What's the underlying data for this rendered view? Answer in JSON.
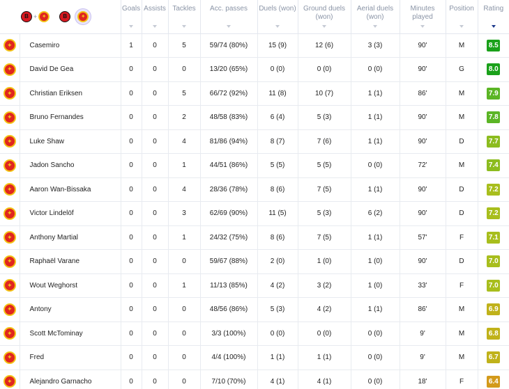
{
  "header": {
    "columns": [
      {
        "key": "goals",
        "label": "Goals"
      },
      {
        "key": "assists",
        "label": "Assists"
      },
      {
        "key": "tackles",
        "label": "Tackles"
      },
      {
        "key": "acc_passes",
        "label": "Acc. passes"
      },
      {
        "key": "duels",
        "label": "Duels (won)"
      },
      {
        "key": "ground_duels",
        "label": "Ground duels (won)"
      },
      {
        "key": "aerial_duels",
        "label": "Aerial duels (won)"
      },
      {
        "key": "minutes",
        "label": "Minutes played"
      },
      {
        "key": "position",
        "label": "Position"
      },
      {
        "key": "rating",
        "label": "Rating"
      }
    ],
    "team_filter": {
      "plus": "+",
      "options": [
        "both-teams",
        "bournemouth",
        "manchester-united"
      ],
      "selected": "manchester-united"
    }
  },
  "colors": {
    "rating_dark_green": "#1aa11a",
    "rating_green": "#5bb525",
    "rating_lime": "#8cbc1f",
    "rating_yellow_green": "#a8be1d",
    "rating_olive": "#c0b21a",
    "rating_orange": "#d39a1b",
    "man_utd_red": "#e0261f",
    "man_utd_gold": "#f3c316"
  },
  "players": [
    {
      "name": "Casemiro",
      "goals": "1",
      "assists": "0",
      "tackles": "5",
      "acc_passes": "59/74 (80%)",
      "duels": "15 (9)",
      "ground_duels": "12 (6)",
      "aerial_duels": "3 (3)",
      "minutes": "90'",
      "position": "M",
      "rating": "8.5",
      "rating_color": "#1aa11a"
    },
    {
      "name": "David De Gea",
      "goals": "0",
      "assists": "0",
      "tackles": "0",
      "acc_passes": "13/20 (65%)",
      "duels": "0 (0)",
      "ground_duels": "0 (0)",
      "aerial_duels": "0 (0)",
      "minutes": "90'",
      "position": "G",
      "rating": "8.0",
      "rating_color": "#1aa11a"
    },
    {
      "name": "Christian Eriksen",
      "goals": "0",
      "assists": "0",
      "tackles": "5",
      "acc_passes": "66/72 (92%)",
      "duels": "11 (8)",
      "ground_duels": "10 (7)",
      "aerial_duels": "1 (1)",
      "minutes": "86'",
      "position": "M",
      "rating": "7.9",
      "rating_color": "#5bb525"
    },
    {
      "name": "Bruno Fernandes",
      "goals": "0",
      "assists": "0",
      "tackles": "2",
      "acc_passes": "48/58 (83%)",
      "duels": "6 (4)",
      "ground_duels": "5 (3)",
      "aerial_duels": "1 (1)",
      "minutes": "90'",
      "position": "M",
      "rating": "7.8",
      "rating_color": "#5bb525"
    },
    {
      "name": "Luke Shaw",
      "goals": "0",
      "assists": "0",
      "tackles": "4",
      "acc_passes": "81/86 (94%)",
      "duels": "8 (7)",
      "ground_duels": "7 (6)",
      "aerial_duels": "1 (1)",
      "minutes": "90'",
      "position": "D",
      "rating": "7.7",
      "rating_color": "#8cbc1f"
    },
    {
      "name": "Jadon Sancho",
      "goals": "0",
      "assists": "0",
      "tackles": "1",
      "acc_passes": "44/51 (86%)",
      "duels": "5 (5)",
      "ground_duels": "5 (5)",
      "aerial_duels": "0 (0)",
      "minutes": "72'",
      "position": "M",
      "rating": "7.4",
      "rating_color": "#8cbc1f"
    },
    {
      "name": "Aaron Wan-Bissaka",
      "goals": "0",
      "assists": "0",
      "tackles": "4",
      "acc_passes": "28/36 (78%)",
      "duels": "8 (6)",
      "ground_duels": "7 (5)",
      "aerial_duels": "1 (1)",
      "minutes": "90'",
      "position": "D",
      "rating": "7.2",
      "rating_color": "#a8be1d"
    },
    {
      "name": "Victor Lindelöf",
      "goals": "0",
      "assists": "0",
      "tackles": "3",
      "acc_passes": "62/69 (90%)",
      "duels": "11 (5)",
      "ground_duels": "5 (3)",
      "aerial_duels": "6 (2)",
      "minutes": "90'",
      "position": "D",
      "rating": "7.2",
      "rating_color": "#a8be1d"
    },
    {
      "name": "Anthony Martial",
      "goals": "0",
      "assists": "0",
      "tackles": "1",
      "acc_passes": "24/32 (75%)",
      "duels": "8 (6)",
      "ground_duels": "7 (5)",
      "aerial_duels": "1 (1)",
      "minutes": "57'",
      "position": "F",
      "rating": "7.1",
      "rating_color": "#a8be1d"
    },
    {
      "name": "Raphaël Varane",
      "goals": "0",
      "assists": "0",
      "tackles": "0",
      "acc_passes": "59/67 (88%)",
      "duels": "2 (0)",
      "ground_duels": "1 (0)",
      "aerial_duels": "1 (0)",
      "minutes": "90'",
      "position": "D",
      "rating": "7.0",
      "rating_color": "#a8be1d"
    },
    {
      "name": "Wout Weghorst",
      "goals": "0",
      "assists": "0",
      "tackles": "1",
      "acc_passes": "11/13 (85%)",
      "duels": "4 (2)",
      "ground_duels": "3 (2)",
      "aerial_duels": "1 (0)",
      "minutes": "33'",
      "position": "F",
      "rating": "7.0",
      "rating_color": "#a8be1d"
    },
    {
      "name": "Antony",
      "goals": "0",
      "assists": "0",
      "tackles": "0",
      "acc_passes": "48/56 (86%)",
      "duels": "5 (3)",
      "ground_duels": "4 (2)",
      "aerial_duels": "1 (1)",
      "minutes": "86'",
      "position": "M",
      "rating": "6.9",
      "rating_color": "#c0b21a"
    },
    {
      "name": "Scott McTominay",
      "goals": "0",
      "assists": "0",
      "tackles": "0",
      "acc_passes": "3/3 (100%)",
      "duels": "0 (0)",
      "ground_duels": "0 (0)",
      "aerial_duels": "0 (0)",
      "minutes": "9'",
      "position": "M",
      "rating": "6.8",
      "rating_color": "#c0b21a"
    },
    {
      "name": "Fred",
      "goals": "0",
      "assists": "0",
      "tackles": "0",
      "acc_passes": "4/4 (100%)",
      "duels": "1 (1)",
      "ground_duels": "1 (1)",
      "aerial_duels": "0 (0)",
      "minutes": "9'",
      "position": "M",
      "rating": "6.7",
      "rating_color": "#c0b21a"
    },
    {
      "name": "Alejandro Garnacho",
      "goals": "0",
      "assists": "0",
      "tackles": "0",
      "acc_passes": "7/10 (70%)",
      "duels": "4 (1)",
      "ground_duels": "4 (1)",
      "aerial_duels": "0 (0)",
      "minutes": "18'",
      "position": "F",
      "rating": "6.4",
      "rating_color": "#d39a1b"
    }
  ]
}
